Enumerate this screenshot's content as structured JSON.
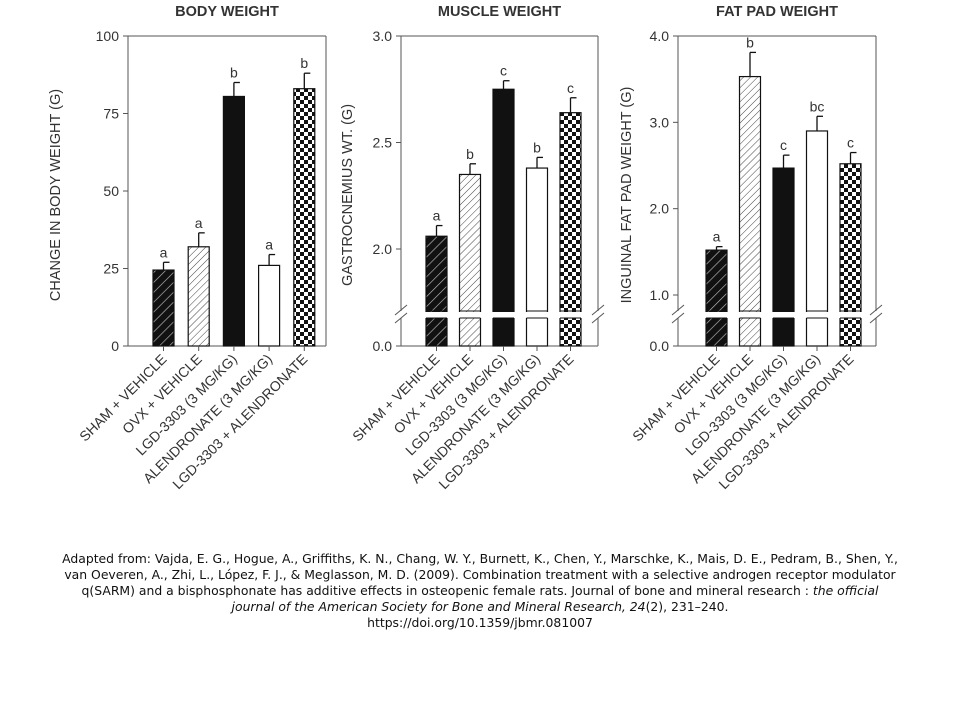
{
  "chart_data": [
    {
      "type": "bar",
      "title": "BODY WEIGHT",
      "ylabel": "CHANGE IN BODY WEIGHT (G)",
      "ylim": [
        0,
        100
      ],
      "yticks": [
        "0",
        "25",
        "50",
        "75",
        "100"
      ],
      "categories": [
        "SHAM + VEHICLE",
        "OVX + VEHICLE",
        "LGD-3303 (3 MG/KG)",
        "ALENDRONATE (3 MG/KG)",
        "LGD-3303 + ALENDRONATE"
      ],
      "values": [
        24.5,
        32,
        80.5,
        26,
        83
      ],
      "errors": [
        2.5,
        4.5,
        4.5,
        3.5,
        5
      ],
      "letters": [
        "a",
        "a",
        "b",
        "a",
        "b"
      ],
      "axis_break": false
    },
    {
      "type": "bar",
      "title": "MUSCLE WEIGHT",
      "ylabel": "GASTROCNEMIUS WT. (G)",
      "ylim": [
        0,
        3.0
      ],
      "yticks": [
        "0.0",
        "2.0",
        "2.5",
        "3.0"
      ],
      "categories": [
        "SHAM + VEHICLE",
        "OVX + VEHICLE",
        "LGD-3303 (3 MG/KG)",
        "ALENDRONATE (3 MG/KG)",
        "LGD-3303 + ALENDRONATE"
      ],
      "values": [
        2.06,
        2.35,
        2.75,
        2.38,
        2.64
      ],
      "errors": [
        0.05,
        0.05,
        0.04,
        0.05,
        0.07
      ],
      "letters": [
        "a",
        "b",
        "c",
        "b",
        "c"
      ],
      "axis_break": true
    },
    {
      "type": "bar",
      "title": "FAT PAD WEIGHT",
      "ylabel": "INGUINAL FAT PAD WEIGHT (G)",
      "ylim": [
        0,
        4.0
      ],
      "yticks": [
        "0.0",
        "1.0",
        "2.0",
        "3.0",
        "4.0"
      ],
      "categories": [
        "SHAM + VEHICLE",
        "OVX + VEHICLE",
        "LGD-3303 (3 MG/KG)",
        "ALENDRONATE (3 MG/KG)",
        "LGD-3303 + ALENDRONATE"
      ],
      "values": [
        1.52,
        3.53,
        2.47,
        2.9,
        2.52
      ],
      "errors": [
        0.04,
        0.28,
        0.15,
        0.17,
        0.13
      ],
      "letters": [
        "a",
        "b",
        "c",
        "bc",
        "c"
      ],
      "axis_break": true
    }
  ],
  "caption": {
    "part1": "Adapted from: Vajda, E. G., Hogue, A., Griffiths, K. N., Chang, W. Y., Burnett, K., Chen, Y., Marschke, K., Mais, D. E., Pedram, B., Shen, Y., van Oeveren, A., Zhi, L., López, F. J., & Meglasson, M. D. (2009). Combination treatment with a selective androgen receptor modulator q(SARM) and a bisphosphonate has additive effects in osteopenic female rats. Journal of bone and mineral research : ",
    "journal": "the official journal of the American Society for Bone and Mineral Research, 24",
    "part2": "(2), 231–240.",
    "doi": "https://doi.org/10.1359/jbmr.081007"
  },
  "colors": {
    "bar_stroke": "#111111",
    "solid_fill": "#111111",
    "axis": "#555555",
    "text": "#333333"
  }
}
